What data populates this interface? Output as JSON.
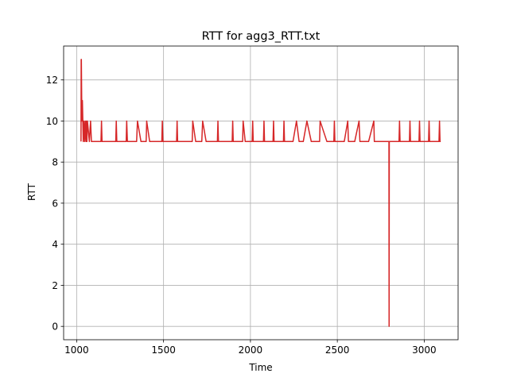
{
  "chart_data": {
    "type": "line",
    "title": "RTT for agg3_RTT.txt",
    "xlabel": "Time",
    "ylabel": "RTT",
    "xlim": [
      925,
      3195
    ],
    "ylim": [
      -0.65,
      13.65
    ],
    "xticks": [
      1000,
      1500,
      2000,
      2500,
      3000
    ],
    "yticks": [
      0,
      2,
      4,
      6,
      8,
      10,
      12
    ],
    "grid": true,
    "series": [
      {
        "color": "#d62728",
        "x": [
          1025,
          1026,
          1027,
          1030,
          1033,
          1038,
          1042,
          1046,
          1050,
          1054,
          1057,
          1059,
          1062,
          1073,
          1080,
          1085,
          1095,
          1105,
          1120,
          1140,
          1143,
          1146,
          1150,
          1180,
          1200,
          1225,
          1228,
          1231,
          1235,
          1260,
          1280,
          1285,
          1288,
          1292,
          1320,
          1345,
          1350,
          1370,
          1385,
          1400,
          1403,
          1420,
          1440,
          1460,
          1480,
          1490,
          1493,
          1496,
          1520,
          1550,
          1575,
          1578,
          1581,
          1610,
          1640,
          1665,
          1668,
          1685,
          1700,
          1720,
          1725,
          1745,
          1770,
          1800,
          1810,
          1813,
          1816,
          1850,
          1880,
          1895,
          1898,
          1901,
          1930,
          1950,
          1955,
          1958,
          1970,
          1990,
          2010,
          2013,
          2016,
          2040,
          2060,
          2075,
          2078,
          2081,
          2100,
          2120,
          2130,
          2133,
          2136,
          2160,
          2180,
          2190,
          2193,
          2196,
          2220,
          2245,
          2265,
          2280,
          2300,
          2304,
          2325,
          2350,
          2380,
          2395,
          2398,
          2401,
          2440,
          2470,
          2480,
          2483,
          2486,
          2520,
          2540,
          2560,
          2564,
          2585,
          2600,
          2625,
          2630,
          2650,
          2680,
          2710,
          2713,
          2716,
          2760,
          2797,
          2798,
          2799,
          2800,
          2801,
          2830,
          2855,
          2858,
          2861,
          2890,
          2915,
          2918,
          2921,
          2950,
          2970,
          2973,
          2976,
          3000,
          3025,
          3028,
          3031,
          3060,
          3085,
          3088,
          3091,
          3095
        ],
        "y": [
          9,
          13,
          13,
          10,
          11,
          9,
          10,
          9,
          10,
          9,
          10,
          9,
          10,
          9,
          10,
          9,
          9,
          9,
          9,
          9,
          10,
          9,
          9,
          9,
          9,
          9,
          10,
          9,
          9,
          9,
          9,
          9,
          10,
          9,
          9,
          9,
          10,
          9,
          9,
          9,
          10,
          9,
          9,
          9,
          9,
          9,
          10,
          9,
          9,
          9,
          9,
          10,
          9,
          9,
          9,
          9,
          10,
          9,
          9,
          9,
          10,
          9,
          9,
          9,
          9,
          10,
          9,
          9,
          9,
          9,
          10,
          9,
          9,
          9,
          9,
          10,
          9,
          9,
          9,
          10,
          9,
          9,
          9,
          9,
          10,
          9,
          9,
          9,
          9,
          10,
          9,
          9,
          9,
          9,
          10,
          9,
          9,
          9,
          10,
          9,
          9,
          9,
          10,
          9,
          9,
          9,
          9,
          10,
          9,
          9,
          9,
          10,
          9,
          9,
          9,
          10,
          9,
          9,
          9,
          10,
          9,
          9,
          9,
          10,
          9,
          9,
          9,
          9,
          0,
          9,
          9,
          9,
          9,
          9,
          10,
          9,
          9,
          9,
          10,
          9,
          9,
          9,
          10,
          9,
          9,
          9,
          10,
          9,
          9,
          9,
          10,
          9,
          9
        ]
      }
    ]
  }
}
